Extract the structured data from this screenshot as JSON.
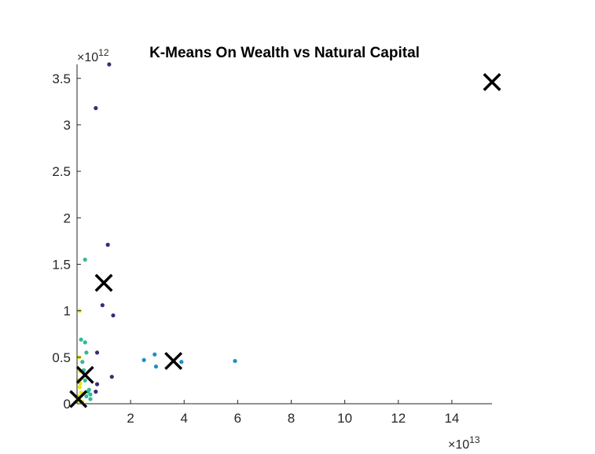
{
  "chart_data": {
    "type": "scatter",
    "title": "K-Means On Wealth vs Natural Capital",
    "xlabel": "",
    "ylabel": "",
    "x_multiplier": {
      "base": "10",
      "exponent": "13"
    },
    "y_multiplier": {
      "base": "10",
      "exponent": "12"
    },
    "xlim": [
      0,
      15.5
    ],
    "ylim": [
      0,
      3.65
    ],
    "x_ticks": [
      2,
      4,
      6,
      8,
      10,
      12,
      14
    ],
    "x_tick_labels": [
      "2",
      "4",
      "6",
      "8",
      "10",
      "12",
      "14"
    ],
    "y_ticks": [
      0,
      0.5,
      1,
      1.5,
      2,
      2.5,
      3,
      3.5
    ],
    "y_tick_labels": [
      "0",
      "0.5",
      "1",
      "1.5",
      "2",
      "2.5",
      "3",
      "3.5"
    ],
    "grid": false,
    "points": [
      {
        "x": 1.2,
        "y": 3.65,
        "cluster": 1
      },
      {
        "x": 0.7,
        "y": 3.18,
        "cluster": 1
      },
      {
        "x": 1.15,
        "y": 1.71,
        "cluster": 1
      },
      {
        "x": 0.95,
        "y": 1.06,
        "cluster": 1
      },
      {
        "x": 1.35,
        "y": 0.95,
        "cluster": 1
      },
      {
        "x": 0.75,
        "y": 0.55,
        "cluster": 1
      },
      {
        "x": 1.3,
        "y": 0.29,
        "cluster": 1
      },
      {
        "x": 0.75,
        "y": 0.21,
        "cluster": 1
      },
      {
        "x": 0.7,
        "y": 0.13,
        "cluster": 1
      },
      {
        "x": 2.5,
        "y": 0.47,
        "cluster": 2
      },
      {
        "x": 2.9,
        "y": 0.53,
        "cluster": 2
      },
      {
        "x": 2.95,
        "y": 0.4,
        "cluster": 2
      },
      {
        "x": 3.9,
        "y": 0.45,
        "cluster": 2
      },
      {
        "x": 5.9,
        "y": 0.46,
        "cluster": 2
      },
      {
        "x": 0.3,
        "y": 1.55,
        "cluster": 3
      },
      {
        "x": 0.15,
        "y": 0.69,
        "cluster": 3
      },
      {
        "x": 0.3,
        "y": 0.66,
        "cluster": 3
      },
      {
        "x": 0.35,
        "y": 0.55,
        "cluster": 3
      },
      {
        "x": 0.2,
        "y": 0.45,
        "cluster": 3
      },
      {
        "x": 0.25,
        "y": 0.36,
        "cluster": 3
      },
      {
        "x": 0.3,
        "y": 0.25,
        "cluster": 3
      },
      {
        "x": 0.45,
        "y": 0.15,
        "cluster": 3
      },
      {
        "x": 0.5,
        "y": 0.1,
        "cluster": 3
      },
      {
        "x": 0.35,
        "y": 0.08,
        "cluster": 3
      },
      {
        "x": 0.5,
        "y": 0.05,
        "cluster": 3
      },
      {
        "x": 0.4,
        "y": 0.13,
        "cluster": 3
      },
      {
        "x": 0.1,
        "y": 1.0,
        "cluster": 4
      },
      {
        "x": 0.08,
        "y": 0.5,
        "cluster": 4
      },
      {
        "x": 0.12,
        "y": 0.35,
        "cluster": 4
      },
      {
        "x": 0.05,
        "y": 0.25,
        "cluster": 4
      },
      {
        "x": 0.1,
        "y": 0.18,
        "cluster": 4
      },
      {
        "x": 0.15,
        "y": 0.12,
        "cluster": 4
      },
      {
        "x": 0.05,
        "y": 0.08,
        "cluster": 4
      },
      {
        "x": 0.08,
        "y": 0.03,
        "cluster": 4
      },
      {
        "x": 0.2,
        "y": 0.02,
        "cluster": 4
      },
      {
        "x": 0.12,
        "y": 0.22,
        "cluster": 4
      }
    ],
    "centroids": [
      {
        "x": 15.5,
        "y": 3.46
      },
      {
        "x": 1.0,
        "y": 1.3
      },
      {
        "x": 3.6,
        "y": 0.46
      },
      {
        "x": 0.3,
        "y": 0.31
      },
      {
        "x": 0.05,
        "y": 0.05
      }
    ],
    "cluster_colors": {
      "1": "#3b2a7a",
      "2": "#1f8fc4",
      "3": "#33b89a",
      "4": "#e8e617"
    },
    "centroid_color": "#000000"
  }
}
